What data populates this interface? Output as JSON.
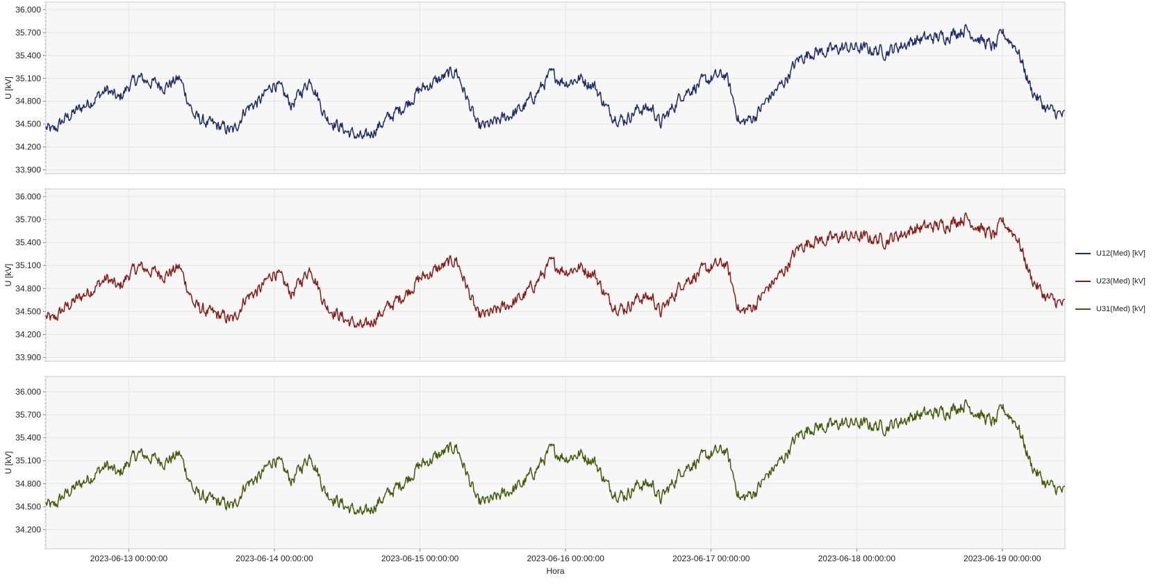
{
  "chart_data": [
    {
      "type": "line",
      "ylabel": "U [kV]",
      "ylim": [
        33.85,
        36.1
      ],
      "yticks": [
        33.9,
        34.2,
        34.5,
        34.8,
        35.1,
        35.4,
        35.7,
        36.0
      ],
      "ytick_labels": [
        "33.900",
        "34.200",
        "34.500",
        "34.800",
        "35.100",
        "35.400",
        "35.700",
        "36.000"
      ],
      "offset": 0,
      "series": [
        {
          "name": "U12(Med) [kV]",
          "color": "#1a2a6c"
        }
      ]
    },
    {
      "type": "line",
      "ylabel": "U [kV]",
      "ylim": [
        33.85,
        36.1
      ],
      "yticks": [
        33.9,
        34.2,
        34.5,
        34.8,
        35.1,
        35.4,
        35.7,
        36.0
      ],
      "ytick_labels": [
        "33.900",
        "34.200",
        "34.500",
        "34.800",
        "35.100",
        "35.400",
        "35.700",
        "36.000"
      ],
      "offset": -0.02,
      "series": [
        {
          "name": "U23(Med) [kV]",
          "color": "#8b1a12"
        }
      ]
    },
    {
      "type": "line",
      "ylabel": "U [kV]",
      "ylim": [
        33.95,
        36.2
      ],
      "yticks": [
        34.2,
        34.5,
        34.8,
        35.1,
        35.4,
        35.7,
        36.0
      ],
      "ytick_labels": [
        "34.200",
        "34.500",
        "34.800",
        "35.100",
        "35.400",
        "35.700",
        "36.000"
      ],
      "offset": 0.09,
      "series": [
        {
          "name": "U31(Med) [kV]",
          "color": "#3f5a08"
        }
      ]
    }
  ],
  "shared": {
    "xlabel": "Hora",
    "x_range_days": [
      -0.57,
      6.43
    ],
    "x_ticks": [
      0,
      1,
      2,
      3,
      4,
      5,
      6
    ],
    "x_tick_labels": [
      "2023-06-13 00:00:00",
      "2023-06-14 00:00:00",
      "2023-06-15 00:00:00",
      "2023-06-16 00:00:00",
      "2023-06-17 00:00:00",
      "2023-06-18 00:00:00",
      "2023-06-19 00:00:00"
    ],
    "profile_x_days": [
      -0.57,
      -0.52,
      -0.45,
      -0.3,
      -0.15,
      -0.07,
      0.0,
      0.07,
      0.15,
      0.25,
      0.35,
      0.45,
      0.55,
      0.65,
      0.72,
      0.8,
      0.9,
      0.96,
      1.0,
      1.06,
      1.12,
      1.25,
      1.35,
      1.5,
      1.62,
      1.7,
      1.8,
      1.9,
      2.0,
      2.1,
      2.2,
      2.25,
      2.3,
      2.4,
      2.5,
      2.6,
      2.7,
      2.8,
      2.9,
      3.0,
      3.1,
      3.2,
      3.3,
      3.4,
      3.5,
      3.6,
      3.65,
      3.75,
      3.8,
      3.9,
      4.0,
      4.1,
      4.2,
      4.3,
      4.4,
      4.5,
      4.6,
      4.7,
      4.8,
      4.9,
      5.0,
      5.2,
      5.4,
      5.6,
      5.75,
      5.85,
      5.95,
      6.0,
      6.1,
      6.2,
      6.3,
      6.43
    ],
    "profile_u_kv": [
      34.45,
      34.4,
      34.55,
      34.75,
      34.95,
      34.82,
      35.0,
      35.1,
      35.05,
      35.0,
      35.1,
      34.6,
      34.5,
      34.45,
      34.4,
      34.7,
      34.8,
      34.95,
      35.05,
      34.9,
      34.75,
      35.1,
      34.6,
      34.4,
      34.3,
      34.45,
      34.6,
      34.75,
      34.95,
      35.05,
      35.15,
      35.2,
      34.95,
      34.45,
      34.5,
      34.6,
      34.7,
      34.9,
      35.15,
      35.05,
      35.1,
      35.0,
      34.65,
      34.55,
      34.7,
      34.7,
      34.5,
      34.75,
      34.9,
      35.0,
      35.1,
      35.15,
      34.5,
      34.6,
      34.85,
      35.05,
      35.35,
      35.45,
      35.45,
      35.5,
      35.5,
      35.45,
      35.6,
      35.65,
      35.75,
      35.6,
      35.5,
      35.7,
      35.5,
      34.95,
      34.7,
      34.6
    ],
    "noise_amplitude_kv": 0.07
  },
  "legend": {
    "items": [
      {
        "label": "U12(Med) [kV]",
        "color": "#1a2a6c"
      },
      {
        "label": "U23(Med) [kV]",
        "color": "#8b1a12"
      },
      {
        "label": "U31(Med) [kV]",
        "color": "#3f5a08"
      }
    ]
  }
}
